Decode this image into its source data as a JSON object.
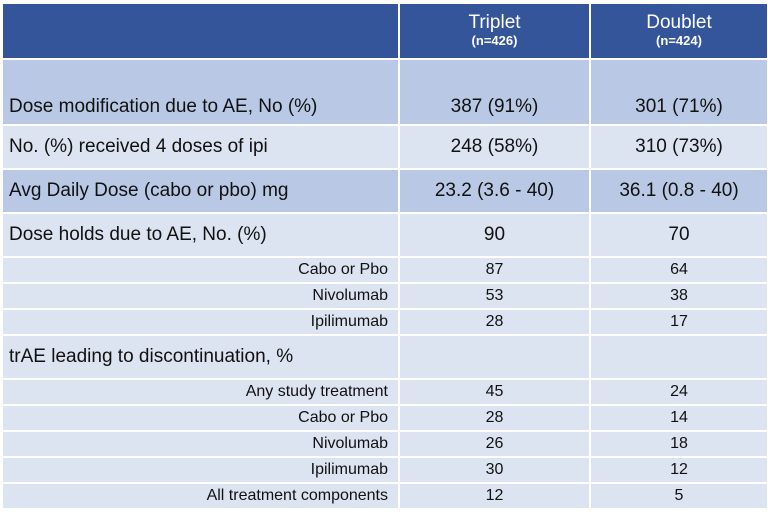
{
  "header": {
    "columns": [
      {
        "name": "Triplet",
        "n": "(n=426)"
      },
      {
        "name": "Doublet",
        "n": "(n=424)"
      }
    ]
  },
  "table": {
    "rows": [
      {
        "label": "Dose modification due to AE, No (%)",
        "cells": [
          "387 (91%)",
          "301 (71%)"
        ]
      },
      {
        "label": "No. (%) received 4 doses of ipi",
        "cells": [
          "248 (58%)",
          "310 (73%)"
        ]
      },
      {
        "label": "Avg Daily Dose (cabo or pbo) mg",
        "cells": [
          "23.2 (3.6 - 40)",
          "36.1 (0.8 - 40)"
        ]
      },
      {
        "label": "Dose holds due to AE, No. (%)",
        "cells": [
          90,
          70
        ]
      },
      {
        "label": "Cabo or Pbo",
        "sub": true,
        "cells": [
          87,
          64
        ]
      },
      {
        "label": "Nivolumab",
        "sub": true,
        "cells": [
          53,
          38
        ]
      },
      {
        "label": "Ipilimumab",
        "sub": true,
        "cells": [
          28,
          17
        ]
      },
      {
        "label": "trAE leading to discontinuation, %",
        "cells": []
      },
      {
        "label": "Any study treatment",
        "sub": true,
        "cells": [
          45,
          24
        ]
      },
      {
        "label": "Cabo or Pbo",
        "sub": true,
        "cells": [
          28,
          14
        ]
      },
      {
        "label": "Nivolumab",
        "sub": true,
        "cells": [
          26,
          18
        ]
      },
      {
        "label": "Ipilimumab",
        "sub": true,
        "cells": [
          30,
          12
        ]
      },
      {
        "label": "All treatment components",
        "sub": true,
        "cells": [
          12,
          5
        ]
      }
    ]
  }
}
